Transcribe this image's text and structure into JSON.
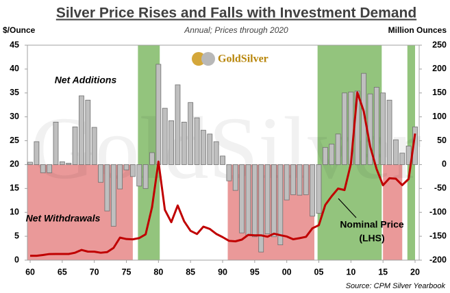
{
  "chart_data": {
    "type": "bar",
    "title": "Silver Price Rises and Falls with Investment Demand",
    "subtitle": "Annual; Prices through 2020",
    "y_label": "$/Ounce",
    "y2_label": "Million Ounces",
    "logo": "GoldSilver",
    "source": "Source: CPM Silver Yearbook",
    "annotations": [
      "Net Additions",
      "Net Withdrawals",
      "Nominal Price",
      "(LHS)"
    ],
    "x": [
      1960,
      1961,
      1962,
      1963,
      1964,
      1965,
      1966,
      1967,
      1968,
      1969,
      1970,
      1971,
      1972,
      1973,
      1974,
      1975,
      1976,
      1977,
      1978,
      1979,
      1980,
      1981,
      1982,
      1983,
      1984,
      1985,
      1986,
      1987,
      1988,
      1989,
      1990,
      1991,
      1992,
      1993,
      1994,
      1995,
      1996,
      1997,
      1998,
      1999,
      2000,
      2001,
      2002,
      2003,
      2004,
      2005,
      2006,
      2007,
      2008,
      2009,
      2010,
      2011,
      2012,
      2013,
      2014,
      2015,
      2016,
      2017,
      2018,
      2019,
      2020
    ],
    "series": [
      {
        "color": "#bfbfbf",
        "axis": "y2",
        "values": [
          5,
          48,
          -17,
          -17,
          89,
          6,
          3,
          79,
          144,
          135,
          78,
          -37,
          -97,
          -129,
          -51,
          -11,
          -25,
          -45,
          -50,
          25,
          210,
          118,
          92,
          167,
          89,
          130,
          98,
          72,
          64,
          48,
          18,
          -34,
          -54,
          -143,
          -148,
          -151,
          -183,
          -145,
          -151,
          -168,
          -74,
          -63,
          -64,
          -63,
          -108,
          -102,
          36,
          43,
          64,
          150,
          152,
          154,
          191,
          148,
          162,
          150,
          135,
          52,
          24,
          39,
          79
        ]
      },
      {
        "color": "#c00000",
        "values": [
          0.91,
          0.92,
          1.08,
          1.28,
          1.29,
          1.29,
          1.29,
          1.55,
          2.14,
          1.79,
          1.77,
          1.55,
          1.68,
          2.56,
          4.71,
          4.42,
          4.35,
          4.62,
          5.4,
          11.09,
          20.63,
          10.52,
          7.95,
          11.44,
          8.14,
          6.14,
          5.47,
          7.01,
          6.53,
          5.5,
          4.82,
          4.04,
          3.94,
          4.3,
          5.29,
          5.2,
          5.2,
          4.9,
          5.54,
          5.22,
          4.95,
          4.37,
          4.6,
          4.88,
          6.67,
          7.32,
          11.55,
          13.38,
          14.99,
          14.67,
          20.19,
          35.12,
          31.15,
          23.79,
          19.08,
          15.68,
          17.14,
          17.05,
          15.71,
          17,
          26.5
        ]
      }
    ],
    "shaded_periods": [
      {
        "start": 1959.6,
        "end": 1976,
        "color": "#ea9999"
      },
      {
        "start": 1976.8,
        "end": 1980.2,
        "color": "#93c47d"
      },
      {
        "start": 1990.8,
        "end": 2004.3,
        "color": "#ea9999"
      },
      {
        "start": 2004.8,
        "end": 2014.8,
        "color": "#93c47d"
      },
      {
        "start": 2015,
        "end": 2018,
        "color": "#ea9999"
      },
      {
        "start": 2018.8,
        "end": 2020,
        "color": "#93c47d"
      }
    ],
    "xlim": [
      1959.57,
      2020.64
    ],
    "xticks": [
      {
        "value": 1960,
        "label": "60"
      },
      {
        "value": 1965,
        "label": "65"
      },
      {
        "value": 1970,
        "label": "70"
      },
      {
        "value": 1975,
        "label": "75"
      },
      {
        "value": 1980,
        "label": "80"
      },
      {
        "value": 1985,
        "label": "85"
      },
      {
        "value": 1990,
        "label": "90"
      },
      {
        "value": 1995,
        "label": "95"
      },
      {
        "value": 2000,
        "label": "00"
      },
      {
        "value": 2005,
        "label": "05"
      },
      {
        "value": 2010,
        "label": "10"
      },
      {
        "value": 2015,
        "label": "15"
      },
      {
        "value": 2020,
        "label": "20"
      }
    ],
    "ylim": [
      0,
      45
    ],
    "yticks": [
      0,
      5,
      10,
      15,
      20,
      25,
      30,
      35,
      40,
      45
    ],
    "y2lim": [
      -200,
      250
    ],
    "y2ticks": [
      -200,
      -150,
      -100,
      -50,
      0,
      50,
      100,
      150,
      200,
      250
    ]
  }
}
